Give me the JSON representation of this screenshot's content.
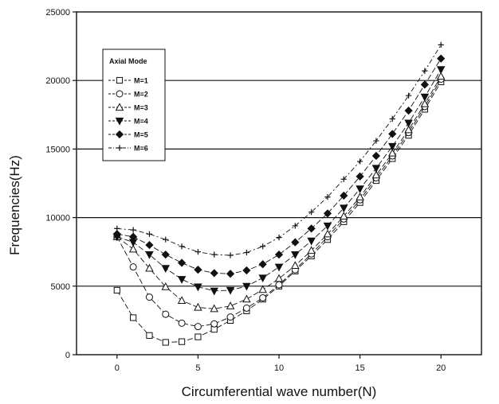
{
  "chart_data": {
    "type": "line",
    "title": "",
    "xlabel": "Circumferential wave number(N)",
    "ylabel": "Frequencies(Hz)",
    "xlim": [
      -2.5,
      22.5
    ],
    "ylim": [
      0,
      25000
    ],
    "xticks": [
      0,
      5,
      10,
      15,
      20
    ],
    "yticks": [
      0,
      5000,
      10000,
      15000,
      20000,
      25000
    ],
    "ytick_labels": [
      "0",
      "5000",
      "10000",
      "15000",
      "20000",
      "25000"
    ],
    "grid": "horizontal",
    "legend": {
      "title": "Axial Mode",
      "position": "top-left"
    },
    "x": [
      0,
      1,
      2,
      3,
      4,
      5,
      6,
      7,
      8,
      9,
      10,
      11,
      12,
      13,
      14,
      15,
      16,
      17,
      18,
      19,
      20
    ],
    "series": [
      {
        "name": "M=1",
        "marker": "square-open",
        "values": [
          4700,
          2700,
          1400,
          900,
          950,
          1300,
          1850,
          2500,
          3200,
          4050,
          5000,
          6100,
          7200,
          8400,
          9700,
          11100,
          12700,
          14300,
          16000,
          17900,
          19900
        ]
      },
      {
        "name": "M=2",
        "marker": "circle-open",
        "values": [
          8600,
          6400,
          4200,
          2950,
          2300,
          2050,
          2250,
          2750,
          3400,
          4150,
          5100,
          6200,
          7350,
          8600,
          9900,
          11300,
          12900,
          14500,
          16200,
          18100,
          20100
        ]
      },
      {
        "name": "M=3",
        "marker": "triangle-up-open",
        "values": [
          8600,
          7700,
          6300,
          4950,
          3950,
          3450,
          3350,
          3550,
          4050,
          4750,
          5550,
          6500,
          7600,
          8800,
          10100,
          11500,
          13100,
          14700,
          16400,
          18300,
          20300
        ]
      },
      {
        "name": "M=4",
        "marker": "triangle-down-filled",
        "values": [
          8600,
          8200,
          7300,
          6300,
          5500,
          4950,
          4650,
          4700,
          5000,
          5600,
          6400,
          7300,
          8300,
          9400,
          10700,
          12100,
          13600,
          15200,
          16900,
          18800,
          20800
        ]
      },
      {
        "name": "M=5",
        "marker": "diamond-filled",
        "values": [
          8800,
          8600,
          8000,
          7300,
          6700,
          6200,
          5950,
          5900,
          6150,
          6600,
          7300,
          8200,
          9200,
          10300,
          11600,
          13000,
          14500,
          16100,
          17800,
          19700,
          21600
        ]
      },
      {
        "name": "M=6",
        "marker": "plus",
        "values": [
          9200,
          9100,
          8800,
          8400,
          7900,
          7500,
          7300,
          7250,
          7450,
          7900,
          8550,
          9400,
          10400,
          11500,
          12800,
          14100,
          15600,
          17200,
          18900,
          20700,
          22600
        ]
      }
    ]
  }
}
